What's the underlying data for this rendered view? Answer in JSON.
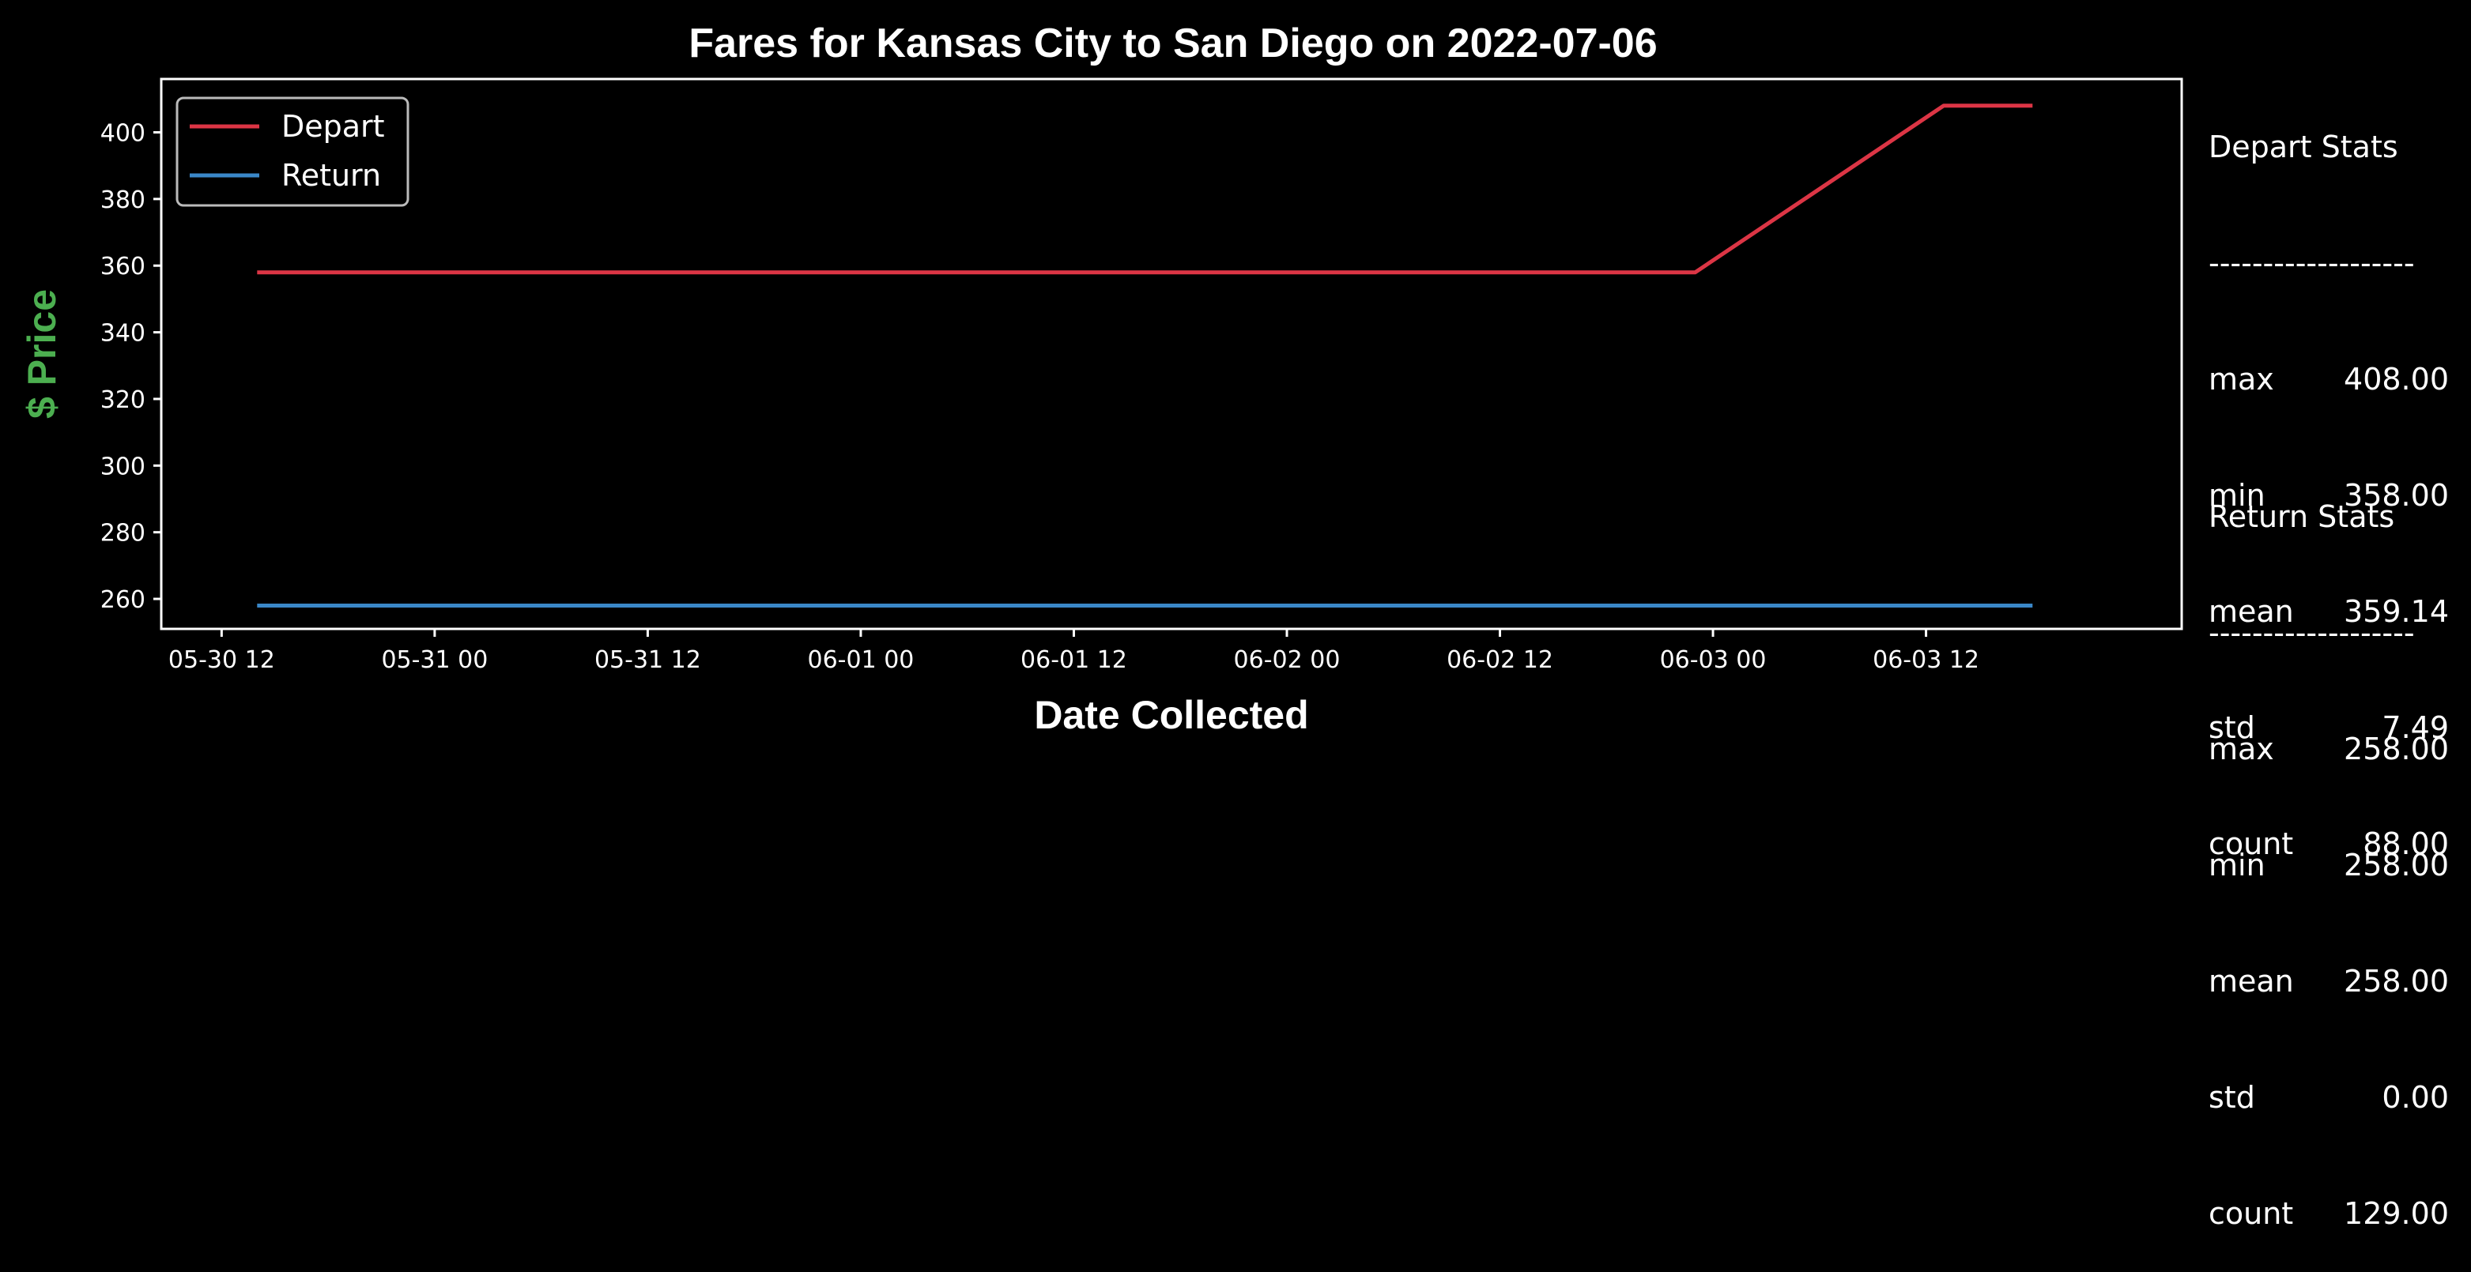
{
  "chart_data": {
    "type": "line",
    "title": "Fares for Kansas City to San Diego on 2022-07-06",
    "xlabel": "Date Collected",
    "ylabel": "$ Price",
    "ylim": [
      251,
      416
    ],
    "xlim": [
      "2022-05-30 08:36",
      "2022-06-04 02:24"
    ],
    "x_tick_labels": [
      "05-30 12",
      "05-31 00",
      "05-31 12",
      "06-01 00",
      "06-01 12",
      "06-02 00",
      "06-02 12",
      "06-03 00",
      "06-03 12"
    ],
    "x_ticks": [
      "2022-05-30 12:00",
      "2022-05-31 00:00",
      "2022-05-31 12:00",
      "2022-06-01 00:00",
      "2022-06-01 12:00",
      "2022-06-02 00:00",
      "2022-06-02 12:00",
      "2022-06-03 00:00",
      "2022-06-03 12:00"
    ],
    "y_ticks": [
      260,
      280,
      300,
      320,
      340,
      360,
      380,
      400
    ],
    "legend_position": "top-left",
    "grid": false,
    "series": [
      {
        "name": "Depart",
        "color": "#dc3545",
        "points": [
          {
            "x": "2022-05-30 14:00",
            "y": 358
          },
          {
            "x": "2022-06-02 23:00",
            "y": 358
          },
          {
            "x": "2022-06-03 13:00",
            "y": 408
          },
          {
            "x": "2022-06-03 18:00",
            "y": 408
          }
        ]
      },
      {
        "name": "Return",
        "color": "#3a87c8",
        "points": [
          {
            "x": "2022-05-30 14:00",
            "y": 258
          },
          {
            "x": "2022-06-03 18:00",
            "y": 258
          }
        ]
      }
    ]
  },
  "colors": {
    "background": "#000000",
    "axes": "#ffffff",
    "ylabel": "#4caf50",
    "depart": "#dc3545",
    "return": "#3a87c8"
  },
  "depart_stats": {
    "title": "Depart Stats",
    "divider": "-------------------",
    "rows": [
      {
        "key": "max",
        "value": "408.00"
      },
      {
        "key": "min",
        "value": "358.00"
      },
      {
        "key": "mean",
        "value": "359.14"
      },
      {
        "key": "std",
        "value": "7.49"
      },
      {
        "key": "count",
        "value": "88.00"
      }
    ]
  },
  "return_stats": {
    "title": "Return Stats",
    "divider": "-------------------",
    "rows": [
      {
        "key": "max",
        "value": "258.00"
      },
      {
        "key": "min",
        "value": "258.00"
      },
      {
        "key": "mean",
        "value": "258.00"
      },
      {
        "key": "std",
        "value": "0.00"
      },
      {
        "key": "count",
        "value": "129.00"
      }
    ]
  }
}
